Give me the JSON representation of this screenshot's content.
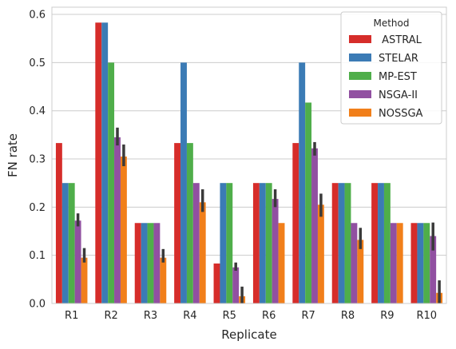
{
  "chart_data": {
    "type": "bar",
    "title": "",
    "xlabel": "Replicate",
    "ylabel": "FN rate",
    "ylim": [
      0,
      0.615
    ],
    "yticks": [
      0.0,
      0.1,
      0.2,
      0.3,
      0.4,
      0.5,
      0.6
    ],
    "ytick_labels": [
      "0.0",
      "0.1",
      "0.2",
      "0.3",
      "0.4",
      "0.5",
      "0.6"
    ],
    "grid": "horizontal",
    "legend": {
      "title": "Method",
      "placement": "top-right"
    },
    "categories": [
      "R1",
      "R2",
      "R3",
      "R4",
      "R5",
      "R6",
      "R7",
      "R8",
      "R9",
      "R10"
    ],
    "series": [
      {
        "name": " ASTRAL",
        "color": "#d62d2a",
        "values": [
          0.333,
          0.583,
          0.167,
          0.333,
          0.083,
          0.25,
          0.333,
          0.25,
          0.25,
          0.167
        ],
        "error": null
      },
      {
        "name": "STELAR",
        "color": "#3b7bb5",
        "values": [
          0.25,
          0.583,
          0.167,
          0.5,
          0.25,
          0.25,
          0.5,
          0.25,
          0.25,
          0.167
        ],
        "error": null
      },
      {
        "name": "MP-EST",
        "color": "#4fae4a",
        "values": [
          0.25,
          0.5,
          0.167,
          0.333,
          0.25,
          0.25,
          0.417,
          0.25,
          0.25,
          0.167
        ],
        "error": null
      },
      {
        "name": "NSGA-II",
        "color": "#9150a1",
        "values": [
          0.172,
          0.345,
          0.167,
          0.25,
          0.075,
          0.217,
          0.322,
          0.167,
          0.167,
          0.14
        ],
        "error": [
          [
            0.16,
            0.187
          ],
          [
            0.328,
            0.365
          ],
          null,
          null,
          [
            0.068,
            0.085
          ],
          [
            0.2,
            0.237
          ],
          [
            0.307,
            0.335
          ],
          null,
          null,
          [
            0.11,
            0.168
          ]
        ]
      },
      {
        "name": "NOSSGA",
        "color": "#f17f1a",
        "values": [
          0.095,
          0.305,
          0.095,
          0.21,
          0.015,
          0.167,
          0.205,
          0.132,
          0.167,
          0.022
        ],
        "error": [
          [
            0.085,
            0.115
          ],
          [
            0.285,
            0.33
          ],
          [
            0.085,
            0.113
          ],
          [
            0.19,
            0.237
          ],
          [
            0.0,
            0.035
          ],
          null,
          [
            0.18,
            0.228
          ],
          [
            0.113,
            0.157
          ],
          null,
          [
            0.0,
            0.048
          ]
        ]
      }
    ]
  }
}
